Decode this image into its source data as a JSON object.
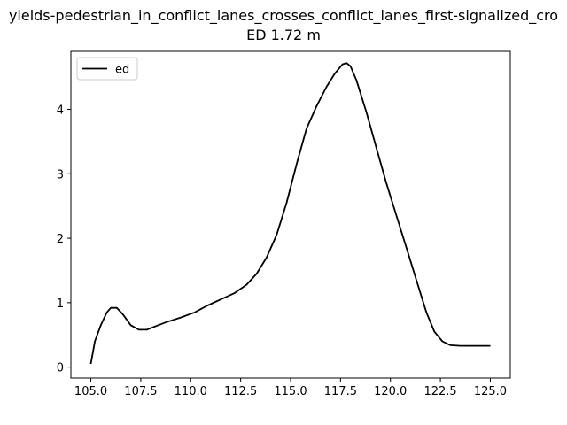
{
  "chart_data": {
    "type": "line",
    "title": "yields-pedestrian_in_conflict_lanes_crosses_conflict_lanes_first-signalized_cro",
    "subtitle": "ED 1.72 m",
    "xlabel": "",
    "ylabel": "",
    "xlim": [
      104.0,
      126.0
    ],
    "ylim": [
      -0.17,
      4.9
    ],
    "xticks": [
      105.0,
      107.5,
      110.0,
      112.5,
      115.0,
      117.5,
      120.0,
      122.5,
      125.0
    ],
    "xtick_labels": [
      "105.0",
      "107.5",
      "110.0",
      "112.5",
      "115.0",
      "117.5",
      "120.0",
      "122.5",
      "125.0"
    ],
    "yticks": [
      0,
      1,
      2,
      3,
      4
    ],
    "ytick_labels": [
      "0",
      "1",
      "2",
      "3",
      "4"
    ],
    "legend_position": "top-left",
    "grid": false,
    "series": [
      {
        "name": "ed",
        "color": "#000000",
        "x": [
          105.0,
          105.2,
          105.5,
          105.8,
          106.0,
          106.3,
          106.6,
          107.0,
          107.4,
          107.8,
          108.2,
          108.8,
          109.5,
          110.2,
          110.8,
          111.5,
          112.2,
          112.8,
          113.3,
          113.8,
          114.3,
          114.8,
          115.3,
          115.8,
          116.3,
          116.8,
          117.2,
          117.6,
          117.8,
          118.0,
          118.3,
          118.8,
          119.3,
          119.8,
          120.3,
          120.8,
          121.3,
          121.8,
          122.2,
          122.6,
          123.0,
          123.5,
          124.0,
          124.5,
          125.0
        ],
        "y": [
          0.05,
          0.4,
          0.65,
          0.85,
          0.92,
          0.92,
          0.82,
          0.65,
          0.58,
          0.58,
          0.63,
          0.7,
          0.77,
          0.85,
          0.95,
          1.05,
          1.15,
          1.28,
          1.45,
          1.7,
          2.05,
          2.55,
          3.15,
          3.7,
          4.05,
          4.35,
          4.55,
          4.7,
          4.72,
          4.67,
          4.45,
          3.95,
          3.4,
          2.85,
          2.35,
          1.85,
          1.35,
          0.85,
          0.55,
          0.4,
          0.34,
          0.33,
          0.33,
          0.33,
          0.33
        ]
      }
    ]
  }
}
